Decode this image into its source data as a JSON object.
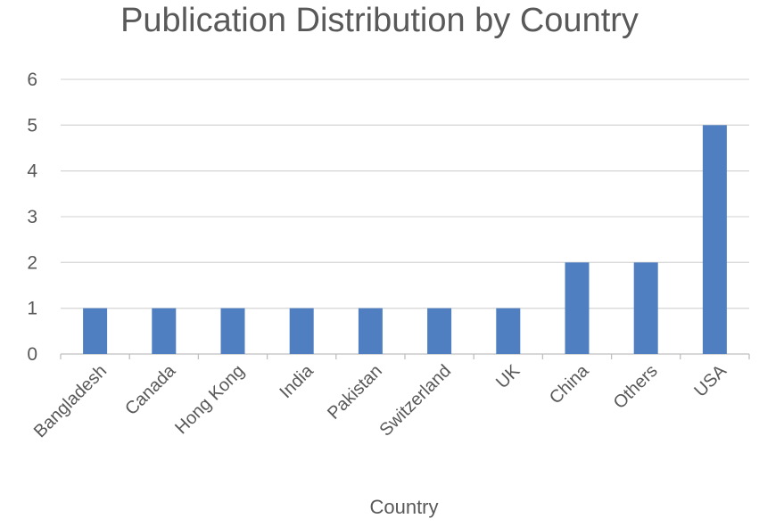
{
  "chart_data": {
    "type": "bar",
    "title": "Publication Distribution by Country",
    "xlabel": "Country",
    "ylabel": "",
    "categories": [
      "Bangladesh",
      "Canada",
      "Hong Kong",
      "India",
      "Pakistan",
      "Switzerland",
      "UK",
      "China",
      "Others",
      "USA"
    ],
    "values": [
      1,
      1,
      1,
      1,
      1,
      1,
      1,
      2,
      2,
      5
    ],
    "ylim": [
      0,
      6
    ],
    "yticks": [
      "0",
      "1",
      "2",
      "3",
      "4",
      "5",
      "6"
    ],
    "grid": true,
    "legend": "none",
    "bar_color": "#4F7FC0"
  }
}
